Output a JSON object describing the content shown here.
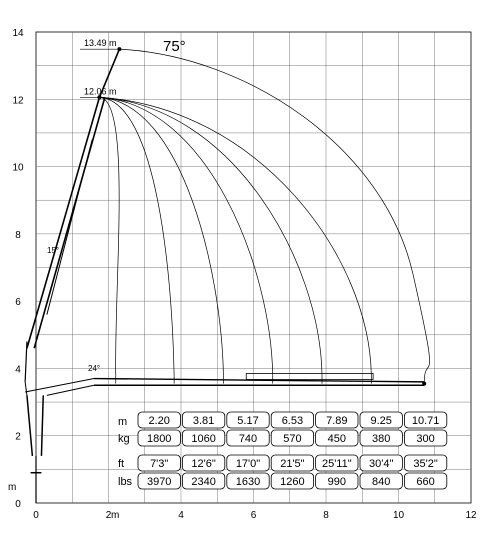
{
  "chart_data": {
    "type": "diagram",
    "x_range": [
      0,
      12
    ],
    "y_range": [
      0,
      14
    ],
    "x_ticks": [
      0,
      2,
      4,
      6,
      8,
      10,
      12
    ],
    "y_ticks": [
      0,
      2,
      4,
      6,
      8,
      10,
      12,
      14
    ],
    "x_unit_label": "m",
    "y_unit_label": "m",
    "angle_max_label": "75°",
    "angle_low_label": "15°",
    "angle_low2_label": "24°",
    "heights": [
      {
        "label": "13.49 m",
        "y": 13.49,
        "x": 2.3
      },
      {
        "label": "12.06 m",
        "y": 12.06,
        "x": 1.75
      }
    ],
    "envelope_x": [
      2.2,
      3.81,
      5.17,
      6.53,
      7.89,
      9.25,
      10.71
    ],
    "table": {
      "metric": {
        "unit_row1": "m",
        "unit_row2": "kg",
        "reach": [
          "2.20",
          "3.81",
          "5.17",
          "6.53",
          "7.89",
          "9.25",
          "10.71"
        ],
        "load": [
          "1800",
          "1060",
          "740",
          "570",
          "450",
          "380",
          "300"
        ]
      },
      "imperial": {
        "unit_row1": "ft",
        "unit_row2": "lbs",
        "reach": [
          "7'3\"",
          "12'6\"",
          "17'0\"",
          "21'5\"",
          "25'11\"",
          "30'4\"",
          "35'2\""
        ],
        "load": [
          "3970",
          "2340",
          "1630",
          "1260",
          "990",
          "840",
          "660"
        ]
      }
    }
  }
}
